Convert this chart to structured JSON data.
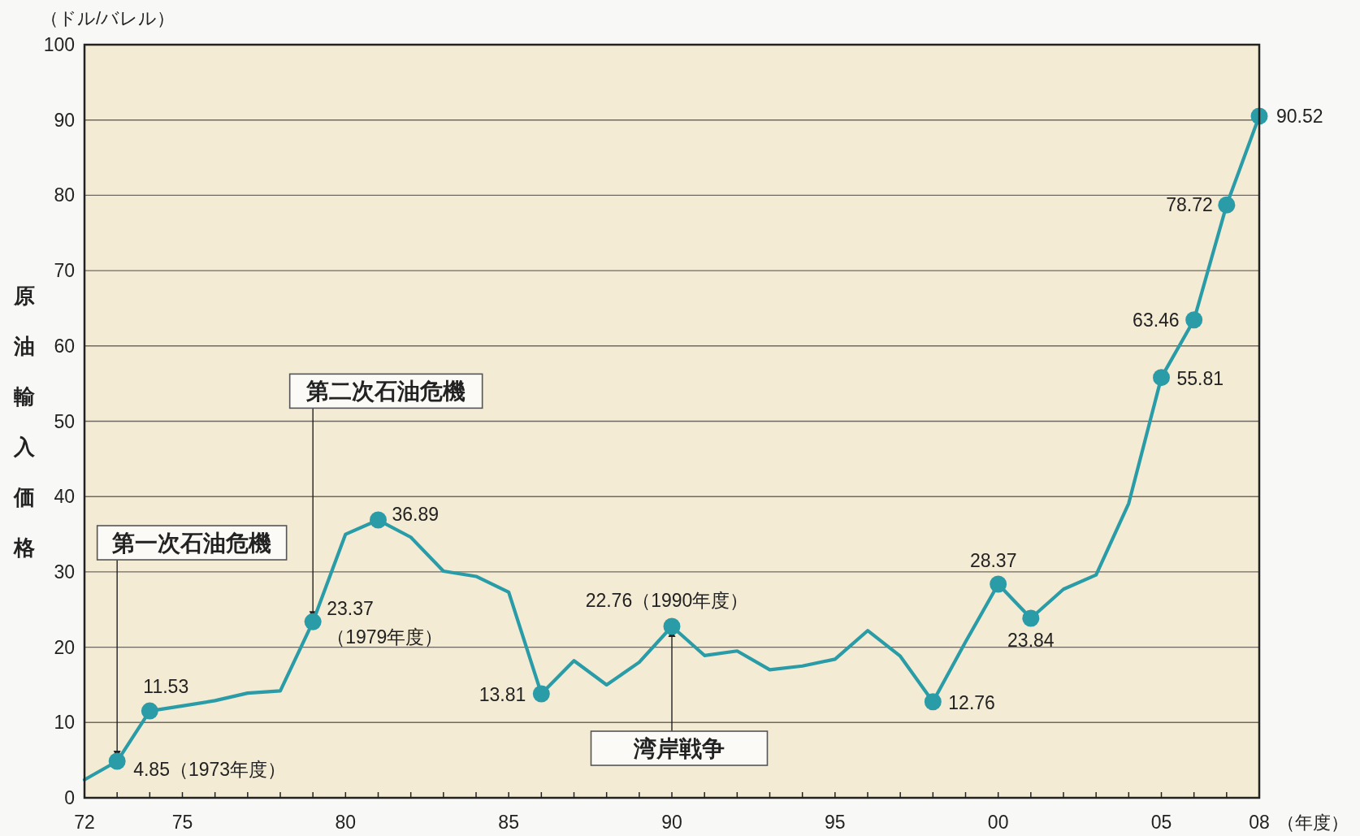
{
  "chart_data": {
    "type": "line",
    "ylabel": "原油輸入価格",
    "xlabel": "（年度）",
    "x": [
      1972,
      1973,
      1974,
      1975,
      1976,
      1977,
      1978,
      1979,
      1980,
      1981,
      1982,
      1983,
      1984,
      1985,
      1986,
      1987,
      1988,
      1989,
      1990,
      1991,
      1992,
      1993,
      1994,
      1995,
      1996,
      1997,
      1998,
      1999,
      2000,
      2001,
      2002,
      2003,
      2004,
      2005,
      2006,
      2007,
      2008
    ],
    "series": [
      {
        "type": "line",
        "color": "#2a9ca8",
        "values": [
          2.4,
          4.85,
          11.53,
          12.2,
          12.9,
          13.9,
          14.2,
          23.37,
          35.0,
          36.89,
          34.6,
          30.1,
          29.4,
          27.3,
          13.81,
          18.2,
          15.0,
          18.0,
          22.76,
          18.9,
          19.5,
          17.0,
          17.5,
          18.4,
          22.2,
          18.8,
          12.76,
          20.7,
          28.37,
          23.84,
          27.7,
          29.6,
          39.1,
          55.81,
          63.46,
          78.72,
          90.52
        ]
      },
      {
        "type": "scatter",
        "color": "#2a9ca8",
        "marker": "circle",
        "x": [
          1973,
          1974,
          1979,
          1981,
          1986,
          1990,
          1998,
          2000,
          2001,
          2005,
          2006,
          2007,
          2008
        ],
        "values": [
          4.85,
          11.53,
          23.37,
          36.89,
          13.81,
          22.76,
          12.76,
          28.37,
          23.84,
          55.81,
          63.46,
          78.72,
          90.52
        ],
        "value_labels": [
          "4.85（1973年度）",
          "11.53",
          "23.37\n（1979年度）",
          "36.89",
          "13.81",
          "22.76（1990年度）",
          "12.76",
          "28.37",
          "23.84",
          "55.81",
          "63.46",
          "78.72",
          "90.52"
        ]
      }
    ],
    "xlim": [
      1972,
      2008
    ],
    "xticks": [
      {
        "value": 1972,
        "label": "72"
      },
      {
        "value": 1973,
        "label": null
      },
      {
        "value": 1974,
        "label": null
      },
      {
        "value": 1975,
        "label": "75"
      },
      {
        "value": 1976,
        "label": null
      },
      {
        "value": 1977,
        "label": null
      },
      {
        "value": 1978,
        "label": null
      },
      {
        "value": 1979,
        "label": null
      },
      {
        "value": 1980,
        "label": "80"
      },
      {
        "value": 1981,
        "label": null
      },
      {
        "value": 1982,
        "label": null
      },
      {
        "value": 1983,
        "label": null
      },
      {
        "value": 1984,
        "label": null
      },
      {
        "value": 1985,
        "label": "85"
      },
      {
        "value": 1986,
        "label": null
      },
      {
        "value": 1987,
        "label": null
      },
      {
        "value": 1988,
        "label": null
      },
      {
        "value": 1989,
        "label": null
      },
      {
        "value": 1990,
        "label": "90"
      },
      {
        "value": 1991,
        "label": null
      },
      {
        "value": 1992,
        "label": null
      },
      {
        "value": 1993,
        "label": null
      },
      {
        "value": 1994,
        "label": null
      },
      {
        "value": 1995,
        "label": "95"
      },
      {
        "value": 1996,
        "label": null
      },
      {
        "value": 1997,
        "label": null
      },
      {
        "value": 1998,
        "label": null
      },
      {
        "value": 1999,
        "label": null
      },
      {
        "value": 2000,
        "label": "00"
      },
      {
        "value": 2001,
        "label": null
      },
      {
        "value": 2002,
        "label": null
      },
      {
        "value": 2003,
        "label": null
      },
      {
        "value": 2004,
        "label": null
      },
      {
        "value": 2005,
        "label": "05"
      },
      {
        "value": 2006,
        "label": null
      },
      {
        "value": 2007,
        "label": null
      },
      {
        "value": 2008,
        "label": "08"
      }
    ],
    "ylim": [
      0,
      100
    ],
    "yticks": [
      0,
      10,
      20,
      30,
      40,
      50,
      60,
      70,
      80,
      90,
      100
    ],
    "grid": "y",
    "annotations": [
      "（ドル/バレル）",
      {
        "text": "第一次石油危機",
        "x": 1973,
        "y": 4.85
      },
      {
        "text": "第二次石油危機",
        "x": 1979,
        "y": 23.37
      },
      {
        "text": "湾岸戦争",
        "x": 1990,
        "y": 22.76
      }
    ]
  }
}
